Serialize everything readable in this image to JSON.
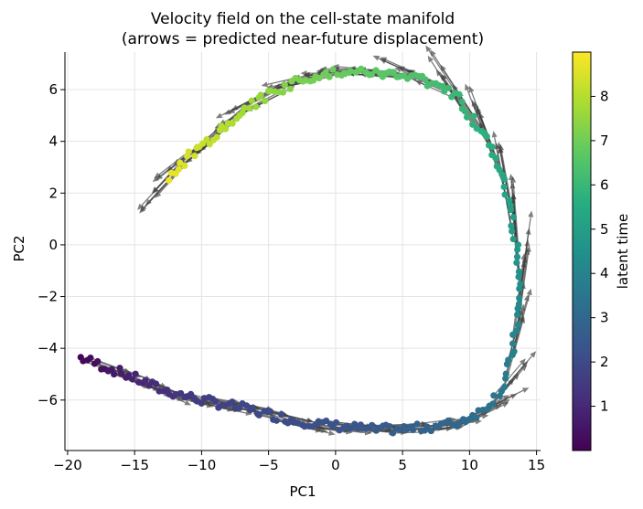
{
  "chart_data": {
    "type": "scatter",
    "title_line1": "Velocity field on the cell-state manifold",
    "title_line2": "(arrows = predicted near-future displacement)",
    "xlabel": "PC1",
    "ylabel": "PC2",
    "xlim": [
      -20.2,
      15.3
    ],
    "ylim": [
      -7.95,
      7.45
    ],
    "xticks": [
      -20,
      -15,
      -10,
      -5,
      0,
      5,
      10,
      15
    ],
    "yticks": [
      -6,
      -4,
      -2,
      0,
      2,
      4,
      6
    ],
    "grid": true,
    "colorbar": {
      "label": "latent time",
      "range": [
        0,
        9
      ],
      "ticks": [
        1,
        2,
        3,
        4,
        5,
        6,
        7,
        8
      ],
      "colormap": "viridis"
    },
    "arrow_color": "#3a3a3a",
    "manifold_path": [
      {
        "x": -19.1,
        "y": -4.35,
        "t": 0.1
      },
      {
        "x": -17.0,
        "y": -4.75,
        "t": 0.5
      },
      {
        "x": -15.0,
        "y": -5.15,
        "t": 0.9
      },
      {
        "x": -13.0,
        "y": -5.6,
        "t": 1.2
      },
      {
        "x": -10.0,
        "y": -6.0,
        "t": 1.6
      },
      {
        "x": -7.0,
        "y": -6.3,
        "t": 1.9
      },
      {
        "x": -3.0,
        "y": -6.8,
        "t": 2.1
      },
      {
        "x": 0.0,
        "y": -7.0,
        "t": 2.3
      },
      {
        "x": 3.0,
        "y": -7.15,
        "t": 2.5
      },
      {
        "x": 6.0,
        "y": -7.1,
        "t": 2.8
      },
      {
        "x": 9.0,
        "y": -6.9,
        "t": 3.0
      },
      {
        "x": 11.0,
        "y": -6.4,
        "t": 3.3
      },
      {
        "x": 12.5,
        "y": -5.5,
        "t": 3.6
      },
      {
        "x": 13.2,
        "y": -4.2,
        "t": 3.9
      },
      {
        "x": 13.8,
        "y": -2.0,
        "t": 4.3
      },
      {
        "x": 13.5,
        "y": 0.0,
        "t": 4.8
      },
      {
        "x": 12.8,
        "y": 2.0,
        "t": 5.2
      },
      {
        "x": 11.5,
        "y": 3.8,
        "t": 5.6
      },
      {
        "x": 9.0,
        "y": 5.8,
        "t": 6.0
      },
      {
        "x": 6.0,
        "y": 6.5,
        "t": 6.4
      },
      {
        "x": 3.0,
        "y": 6.65,
        "t": 6.7
      },
      {
        "x": 0.0,
        "y": 6.65,
        "t": 6.9
      },
      {
        "x": -3.0,
        "y": 6.3,
        "t": 7.2
      },
      {
        "x": -6.0,
        "y": 5.5,
        "t": 7.6
      },
      {
        "x": -9.0,
        "y": 4.2,
        "t": 8.1
      },
      {
        "x": -11.0,
        "y": 3.4,
        "t": 8.4
      },
      {
        "x": -12.6,
        "y": 2.5,
        "t": 8.8
      }
    ]
  }
}
